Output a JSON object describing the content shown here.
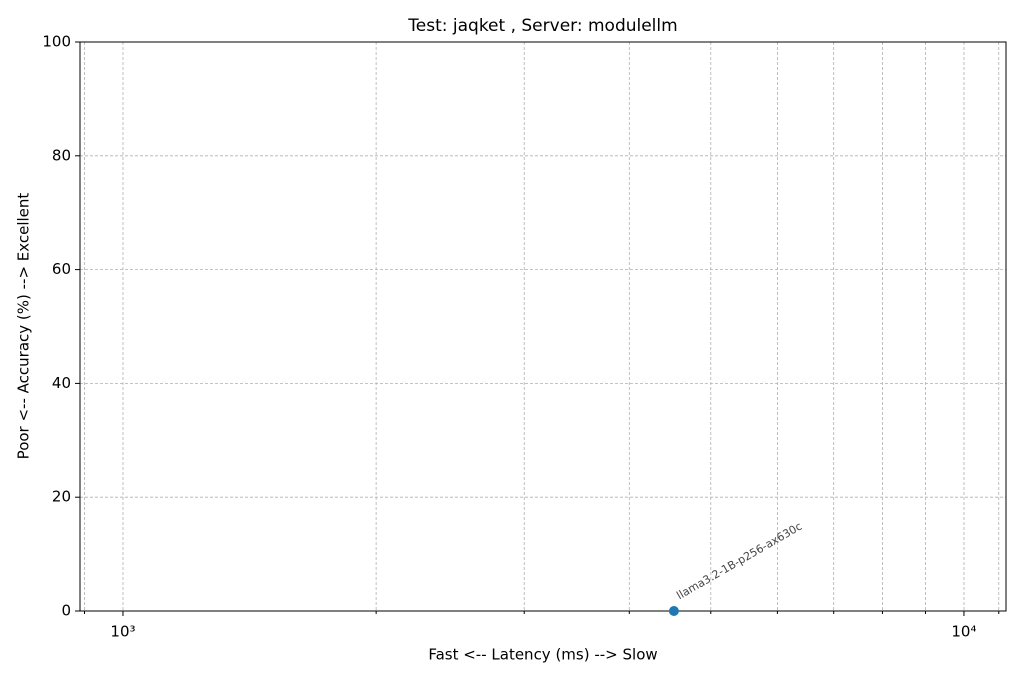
{
  "chart_data": {
    "type": "scatter",
    "title": "Test: jaqket , Server: modulellm",
    "xlabel": "Fast <--  Latency (ms)  --> Slow",
    "ylabel": "Poor <--  Accuracy (%)  --> Excellent",
    "x": [
      4520
    ],
    "values": [
      0
    ],
    "point_labels": [
      "llama3.2-1B-p256-ax630c"
    ],
    "color": "#1f77b4",
    "xscale": "log",
    "xlim": [
      889,
      11220
    ],
    "ylim": [
      0,
      100
    ],
    "xticks": [
      {
        "value": 1000,
        "label": "10³"
      },
      {
        "value": 10000,
        "label": "10⁴"
      }
    ],
    "xminorticks": [
      900,
      2000,
      3000,
      4000,
      5000,
      6000,
      7000,
      8000,
      9000,
      11000
    ],
    "yticks": [
      0,
      20,
      40,
      60,
      80,
      100
    ],
    "grid": true
  }
}
